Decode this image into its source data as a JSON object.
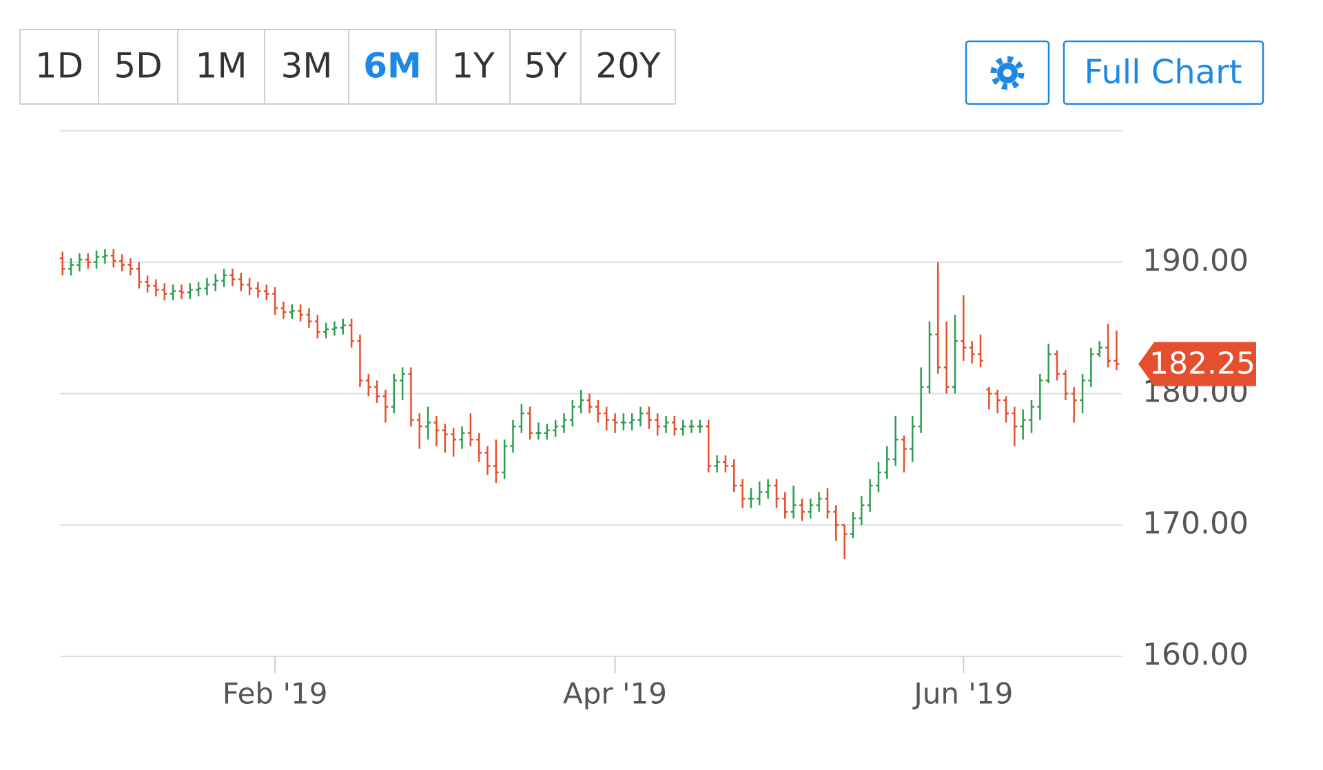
{
  "toolbar": {
    "ranges": [
      "1D",
      "5D",
      "1M",
      "3M",
      "6M",
      "1Y",
      "5Y",
      "20Y"
    ],
    "active": 4,
    "full_chart": "Full Chart"
  },
  "chart_data": {
    "type": "ohlc",
    "up_color": "#2e9e52",
    "down_color": "#e4502f",
    "grid": true,
    "ylim": [
      160,
      200
    ],
    "yticks": [
      {
        "value": 160,
        "label": "160.00"
      },
      {
        "value": 170,
        "label": "170.00"
      },
      {
        "value": 180,
        "label": "180.00"
      },
      {
        "value": 190,
        "label": "190.00"
      }
    ],
    "categories": [
      null,
      null,
      null,
      null,
      null,
      null,
      null,
      null,
      null,
      null,
      null,
      null,
      null,
      null,
      null,
      null,
      null,
      null,
      null,
      null,
      null,
      null,
      null,
      null,
      null,
      "Feb '19",
      null,
      null,
      null,
      null,
      null,
      null,
      null,
      null,
      null,
      null,
      null,
      null,
      null,
      null,
      null,
      null,
      null,
      null,
      null,
      null,
      null,
      null,
      null,
      null,
      null,
      null,
      null,
      null,
      null,
      null,
      null,
      null,
      null,
      null,
      null,
      null,
      null,
      null,
      null,
      "Apr '19",
      null,
      null,
      null,
      null,
      null,
      null,
      null,
      null,
      null,
      null,
      null,
      null,
      null,
      null,
      null,
      null,
      null,
      null,
      null,
      null,
      null,
      null,
      null,
      null,
      null,
      null,
      null,
      null,
      null,
      null,
      null,
      null,
      null,
      null,
      null,
      null,
      null,
      null,
      null,
      null,
      "Jun '19",
      null,
      null,
      null,
      null,
      null,
      null,
      null,
      null,
      null,
      null,
      null,
      null,
      null,
      null,
      null,
      null,
      null,
      null
    ],
    "open": [
      190.3,
      189.5,
      189.8,
      190.2,
      190.0,
      190.4,
      190.5,
      190.1,
      189.8,
      189.5,
      188.5,
      188.2,
      187.9,
      187.6,
      187.8,
      187.7,
      187.9,
      188.0,
      188.3,
      188.6,
      189.0,
      188.7,
      188.3,
      188.0,
      187.8,
      187.6,
      186.5,
      186.2,
      186.3,
      186.0,
      185.5,
      184.7,
      184.9,
      185.0,
      185.2,
      184.0,
      181.0,
      180.5,
      179.8,
      179.0,
      181.0,
      181.5,
      178.0,
      177.5,
      177.8,
      177.2,
      176.9,
      176.5,
      177.0,
      176.5,
      175.5,
      174.5,
      174.0,
      176.0,
      177.5,
      178.5,
      177.0,
      177.0,
      177.2,
      177.5,
      178.0,
      179.0,
      179.5,
      179.0,
      178.5,
      178.0,
      177.8,
      177.8,
      178.0,
      178.5,
      178.0,
      177.5,
      177.8,
      177.3,
      177.5,
      177.5,
      177.5,
      174.5,
      174.8,
      174.5,
      173.0,
      172.0,
      172.0,
      172.5,
      173.0,
      172.0,
      171.0,
      171.5,
      171.0,
      171.5,
      172.0,
      171.0,
      170.0,
      169.3,
      170.5,
      171.5,
      173.0,
      174.0,
      175.0,
      176.5,
      175.8,
      177.5,
      180.5,
      184.5,
      182.0,
      180.5,
      184.0,
      183.5,
      183.0,
      180.3,
      180.0,
      179.5,
      178.5,
      177.5,
      178.0,
      179.0,
      181.0,
      183.0,
      181.5,
      180.0,
      179.5,
      181.0,
      183.0,
      183.5,
      182.5
    ],
    "high": [
      190.8,
      190.3,
      190.7,
      190.7,
      190.9,
      191.0,
      191.0,
      190.6,
      190.3,
      190.0,
      189.0,
      188.7,
      188.4,
      188.3,
      188.3,
      188.4,
      188.5,
      188.8,
      189.1,
      189.5,
      189.5,
      189.2,
      188.8,
      188.5,
      188.3,
      188.1,
      187.0,
      186.8,
      186.8,
      186.5,
      186.0,
      185.4,
      185.5,
      185.7,
      185.7,
      184.5,
      181.5,
      181.0,
      180.3,
      181.5,
      182.0,
      182.0,
      178.5,
      179.0,
      178.3,
      177.7,
      177.4,
      177.5,
      178.5,
      177.0,
      176.0,
      176.5,
      176.5,
      178.0,
      179.2,
      179.0,
      177.8,
      177.7,
      178.0,
      178.5,
      179.5,
      180.3,
      180.0,
      179.5,
      179.0,
      178.5,
      178.5,
      178.5,
      179.0,
      179.0,
      178.5,
      178.3,
      178.3,
      178.0,
      178.0,
      178.0,
      178.0,
      175.3,
      175.3,
      175.0,
      173.5,
      172.8,
      173.3,
      173.5,
      173.5,
      172.5,
      173.0,
      172.0,
      172.0,
      172.5,
      172.8,
      171.5,
      170.0,
      171.0,
      172.2,
      173.5,
      174.8,
      176.0,
      178.3,
      176.8,
      178.3,
      182.0,
      185.5,
      190.0,
      185.5,
      186.0,
      187.5,
      184.0,
      184.5,
      180.5,
      180.3,
      179.8,
      179.0,
      178.8,
      179.5,
      181.5,
      183.8,
      183.3,
      181.8,
      180.5,
      181.5,
      183.5,
      184.0,
      185.3,
      184.8
    ],
    "low": [
      189.0,
      189.0,
      189.3,
      189.5,
      189.5,
      189.9,
      189.6,
      189.3,
      189.0,
      188.0,
      187.7,
      187.4,
      187.1,
      187.1,
      187.2,
      187.2,
      187.4,
      187.5,
      187.8,
      188.1,
      188.2,
      187.8,
      187.5,
      187.3,
      187.1,
      186.0,
      185.7,
      185.7,
      185.5,
      185.0,
      184.2,
      184.2,
      184.4,
      184.5,
      183.5,
      180.5,
      179.8,
      179.3,
      177.8,
      178.5,
      179.5,
      177.5,
      175.8,
      176.5,
      176.0,
      175.5,
      175.2,
      175.8,
      176.0,
      174.8,
      173.8,
      173.2,
      173.5,
      175.5,
      177.0,
      176.5,
      176.5,
      176.5,
      176.7,
      177.0,
      177.5,
      178.5,
      178.5,
      177.8,
      177.2,
      177.0,
      177.2,
      177.2,
      177.5,
      177.3,
      176.8,
      177.0,
      176.8,
      176.8,
      177.0,
      177.0,
      174.0,
      174.0,
      174.0,
      172.5,
      171.3,
      171.3,
      171.5,
      172.0,
      171.3,
      170.5,
      170.5,
      170.3,
      170.5,
      171.0,
      170.5,
      168.8,
      167.4,
      169.0,
      170.0,
      171.0,
      172.5,
      173.5,
      174.5,
      174.0,
      174.8,
      177.0,
      180.0,
      181.5,
      180.0,
      180.0,
      182.5,
      182.3,
      182.0,
      178.8,
      178.5,
      177.8,
      176.0,
      176.5,
      177.0,
      178.0,
      180.8,
      181.0,
      179.5,
      177.8,
      178.5,
      180.5,
      182.8,
      182.0,
      181.8
    ],
    "close": [
      189.5,
      189.8,
      190.2,
      190.0,
      190.4,
      190.5,
      190.1,
      189.8,
      189.5,
      188.5,
      188.2,
      187.9,
      187.6,
      187.8,
      187.7,
      187.9,
      188.0,
      188.3,
      188.6,
      189.0,
      188.7,
      188.3,
      188.0,
      187.8,
      187.6,
      186.5,
      186.2,
      186.3,
      186.0,
      185.5,
      184.7,
      184.9,
      185.0,
      185.2,
      184.0,
      181.0,
      180.5,
      179.8,
      179.0,
      181.0,
      181.5,
      178.0,
      177.5,
      177.8,
      177.2,
      176.9,
      176.5,
      177.0,
      176.5,
      175.5,
      174.5,
      174.0,
      176.0,
      177.5,
      178.5,
      177.0,
      177.0,
      177.2,
      177.5,
      178.0,
      179.0,
      179.5,
      179.0,
      178.5,
      178.0,
      177.8,
      177.8,
      178.0,
      178.5,
      178.0,
      177.5,
      177.8,
      177.3,
      177.5,
      177.5,
      177.5,
      174.5,
      174.8,
      174.5,
      173.0,
      172.0,
      172.0,
      172.5,
      173.0,
      172.0,
      171.0,
      171.5,
      171.0,
      171.5,
      172.0,
      171.0,
      170.0,
      169.3,
      170.5,
      171.5,
      173.0,
      174.0,
      175.0,
      176.5,
      175.8,
      177.5,
      180.5,
      184.5,
      182.0,
      180.5,
      184.0,
      183.5,
      183.0,
      182.5,
      180.0,
      179.5,
      178.5,
      177.5,
      178.0,
      179.0,
      181.0,
      183.0,
      181.5,
      180.0,
      179.5,
      181.0,
      183.0,
      183.5,
      182.5,
      182.25
    ]
  }
}
